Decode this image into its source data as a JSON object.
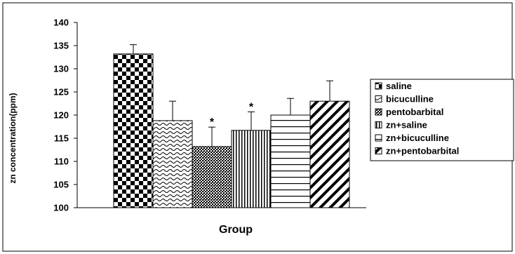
{
  "chart_data": {
    "type": "bar",
    "xlabel": "Group",
    "ylabel": "zn concentration(ppm)",
    "ylim": [
      100,
      140
    ],
    "yticks": [
      100,
      105,
      110,
      115,
      120,
      125,
      130,
      135,
      140
    ],
    "grid": false,
    "legend_position": "right",
    "series": [
      {
        "name": "saline",
        "value": 133.2,
        "error": 2.0,
        "significant": false,
        "pattern": "checker"
      },
      {
        "name": "bicuculline",
        "value": 118.8,
        "error": 4.2,
        "significant": false,
        "pattern": "wave"
      },
      {
        "name": "pentobarbital",
        "value": 113.2,
        "error": 4.2,
        "significant": true,
        "pattern": "crosshatch"
      },
      {
        "name": "zn+saline",
        "value": 116.7,
        "error": 4.0,
        "significant": true,
        "pattern": "vertical"
      },
      {
        "name": "zn+bicuculline",
        "value": 120.0,
        "error": 3.6,
        "significant": false,
        "pattern": "horizontal"
      },
      {
        "name": "zn+pentobarbital",
        "value": 123.0,
        "error": 4.4,
        "significant": false,
        "pattern": "diagonal"
      }
    ],
    "significance_marker": "*"
  }
}
